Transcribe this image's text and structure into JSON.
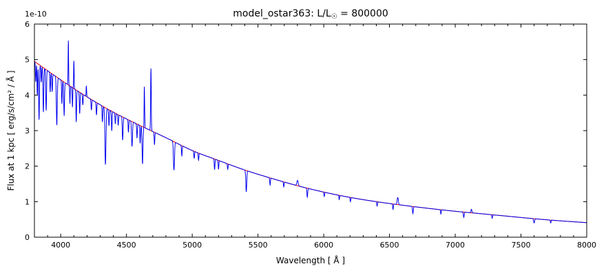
{
  "figure": {
    "title": {
      "prefix": "model_ostar363: L/L",
      "sub": "☉",
      "suffix": " = 800000"
    },
    "xlabel": "Wavelength [ Å ]",
    "ylabel": "Flux at 1 kpc [ erg/s/cm² / Å ]",
    "offset_label": "1e-10"
  },
  "chart_data": {
    "type": "line",
    "title": "model_ostar363: L/L☉ = 800000",
    "xlabel": "Wavelength [ Å ]",
    "ylabel": "Flux at 1 kpc [ erg/s/cm² / Å ]",
    "y_scale_factor": "1e-10",
    "xlim": [
      3800,
      8000
    ],
    "ylim": [
      0,
      6
    ],
    "xticks": [
      4000,
      4500,
      5000,
      5500,
      6000,
      6500,
      7000,
      7500,
      8000
    ],
    "yticks": [
      0,
      1,
      2,
      3,
      4,
      5,
      6
    ],
    "x_minor_step": 100,
    "grid": false,
    "legend": "none",
    "series": [
      {
        "name": "spectrum",
        "color": "#0000ee",
        "description": "blue model spectrum with absorption and emission lines"
      },
      {
        "name": "continuum_fit",
        "color": "#ee0000",
        "description": "red smooth continuum"
      }
    ],
    "continuum": {
      "x": [
        3800,
        4000,
        4200,
        4400,
        4600,
        4800,
        5000,
        5200,
        5400,
        5600,
        5800,
        6000,
        6200,
        6400,
        6600,
        6800,
        7000,
        7200,
        7400,
        7600,
        7800,
        8000
      ],
      "y": [
        4.95,
        4.43,
        3.95,
        3.52,
        3.15,
        2.8,
        2.44,
        2.16,
        1.89,
        1.66,
        1.45,
        1.27,
        1.12,
        1.0,
        0.9,
        0.81,
        0.73,
        0.66,
        0.59,
        0.52,
        0.46,
        0.41
      ]
    },
    "features": [
      [
        3810,
        -0.55,
        2.5
      ],
      [
        3822,
        -0.9,
        2.5
      ],
      [
        3835,
        -1.55,
        3
      ],
      [
        3852,
        -0.45,
        2.5
      ],
      [
        3868,
        -1.25,
        3
      ],
      [
        3889,
        -1.15,
        3
      ],
      [
        3920,
        -0.55,
        2.5
      ],
      [
        3935,
        -0.5,
        2.5
      ],
      [
        3970,
        -1.35,
        3.5
      ],
      [
        4009,
        -0.65,
        2.5
      ],
      [
        4026,
        -0.95,
        3
      ],
      [
        4058,
        1.25,
        2
      ],
      [
        4070,
        -0.5,
        2
      ],
      [
        4089,
        -0.55,
        2
      ],
      [
        4100,
        0.78,
        2
      ],
      [
        4118,
        -0.9,
        2.5
      ],
      [
        4144,
        -0.6,
        2.5
      ],
      [
        4168,
        -0.3,
        2.5
      ],
      [
        4195,
        0.3,
        2
      ],
      [
        4233,
        -0.3,
        2.5
      ],
      [
        4272,
        -0.35,
        2.5
      ],
      [
        4317,
        -0.45,
        2.5
      ],
      [
        4340,
        -1.6,
        4
      ],
      [
        4367,
        -0.45,
        2.5
      ],
      [
        4388,
        -0.55,
        2.5
      ],
      [
        4415,
        -0.3,
        2.5
      ],
      [
        4437,
        -0.3,
        2.5
      ],
      [
        4471,
        -0.65,
        3
      ],
      [
        4515,
        -0.35,
        2.5
      ],
      [
        4542,
        -0.7,
        3.5
      ],
      [
        4580,
        -0.4,
        2.5
      ],
      [
        4604,
        -0.5,
        2.5
      ],
      [
        4622,
        -1.05,
        3.5
      ],
      [
        4636,
        1.15,
        2.2
      ],
      [
        4686,
        1.75,
        2.4
      ],
      [
        4713,
        -0.35,
        2.5
      ],
      [
        4861,
        -0.8,
        4
      ],
      [
        4921,
        -0.3,
        2.5
      ],
      [
        5015,
        -0.2,
        2.5
      ],
      [
        5048,
        -0.2,
        2.5
      ],
      [
        5170,
        -0.3,
        2.5
      ],
      [
        5200,
        -0.25,
        2.5
      ],
      [
        5270,
        -0.15,
        2.5
      ],
      [
        5411,
        -0.6,
        3.5
      ],
      [
        5592,
        -0.2,
        2.5
      ],
      [
        5696,
        -0.15,
        2.5
      ],
      [
        5801,
        0.15,
        5
      ],
      [
        5875,
        -0.25,
        3
      ],
      [
        6004,
        -0.12,
        2.5
      ],
      [
        6118,
        -0.12,
        2.5
      ],
      [
        6203,
        -0.12,
        2.5
      ],
      [
        6406,
        -0.12,
        2.5
      ],
      [
        6527,
        -0.15,
        2.5
      ],
      [
        6563,
        0.2,
        4.5
      ],
      [
        6678,
        -0.2,
        3
      ],
      [
        6891,
        -0.12,
        2.5
      ],
      [
        7065,
        -0.15,
        3
      ],
      [
        7123,
        0.1,
        3.5
      ],
      [
        7281,
        -0.1,
        2.5
      ],
      [
        7600,
        -0.12,
        3.5
      ],
      [
        7726,
        -0.08,
        2.5
      ]
    ]
  }
}
